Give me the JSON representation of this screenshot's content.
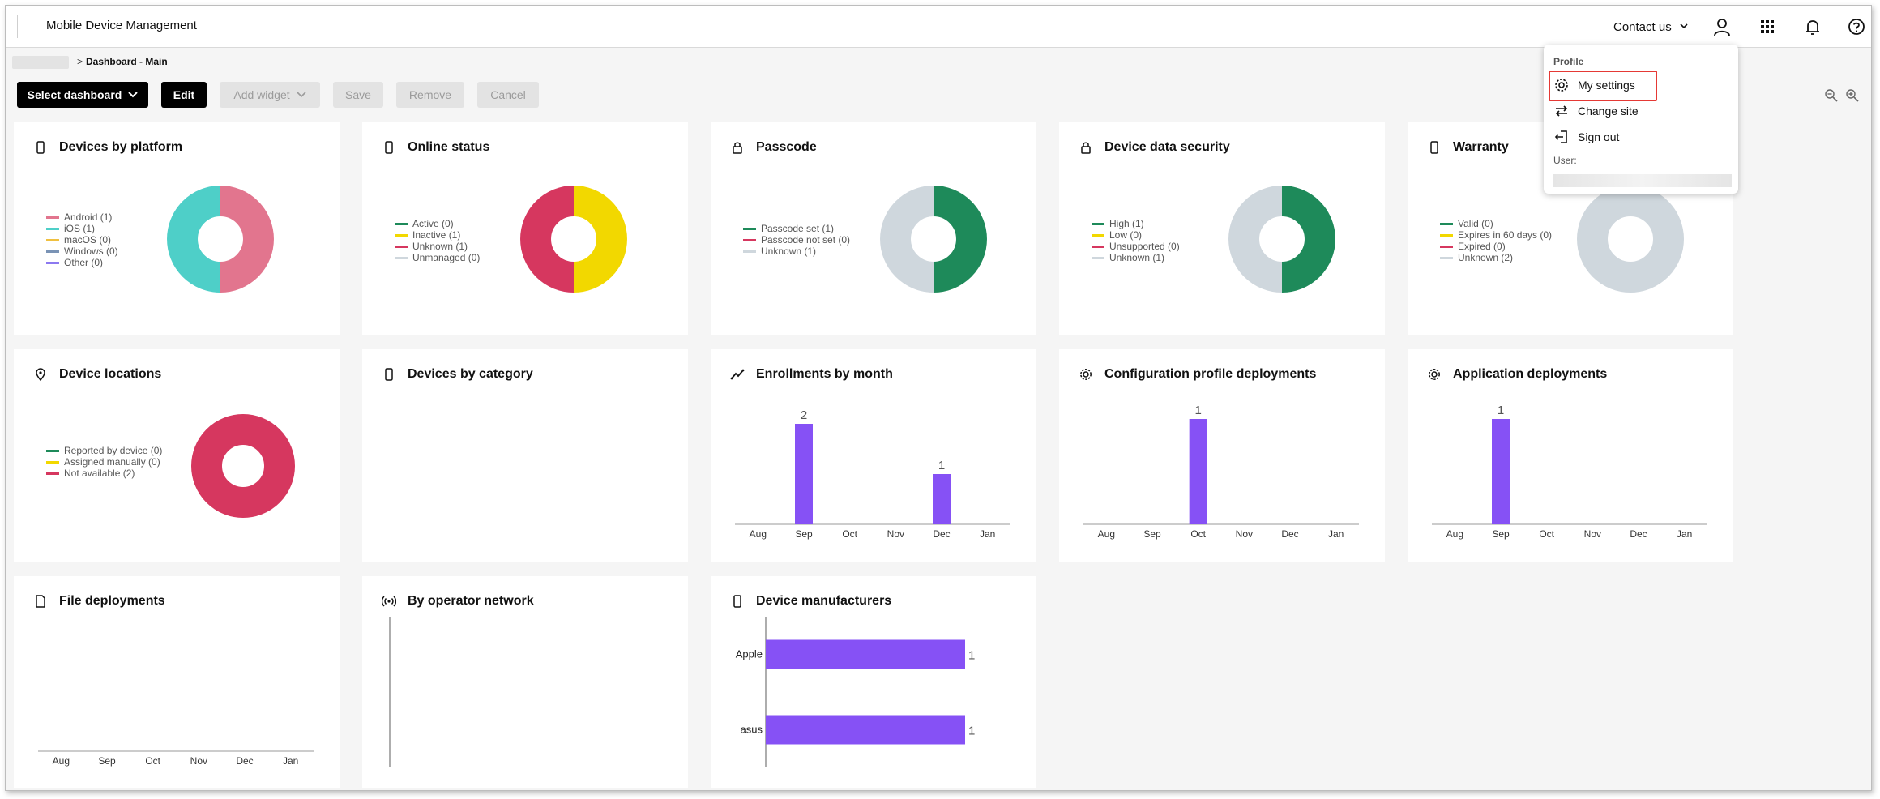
{
  "app": {
    "title": "Mobile Device Management"
  },
  "header": {
    "contact_label": "Contact us"
  },
  "breadcrumb": {
    "current": "Dashboard - Main",
    "separator": ">"
  },
  "toolbar": {
    "select_dashboard": "Select dashboard",
    "edit": "Edit",
    "add_widget": "Add widget",
    "save": "Save",
    "remove": "Remove",
    "cancel": "Cancel"
  },
  "profile_menu": {
    "title": "Profile",
    "my_settings": "My settings",
    "change_site": "Change site",
    "sign_out": "Sign out",
    "user_label": "User:"
  },
  "colors": {
    "accent": "#8651f5",
    "green": "#1e8a5a",
    "teal": "#4ecfc8",
    "pink": "#e2758e",
    "red": "#d6375f",
    "yellow": "#f2d800",
    "grey": "#cfd7dd",
    "blue_grey": "#7a93b5",
    "purple": "#8c79f0",
    "gold": "#f0c040"
  },
  "widgets": {
    "platform": {
      "title": "Devices by platform",
      "legend": [
        "Android (1)",
        "iOS (1)",
        "macOS (0)",
        "Windows (0)",
        "Other (0)"
      ]
    },
    "online": {
      "title": "Online status",
      "legend": [
        "Active (0)",
        "Inactive (1)",
        "Unknown (1)",
        "Unmanaged (0)"
      ]
    },
    "passcode": {
      "title": "Passcode",
      "legend": [
        "Passcode set (1)",
        "Passcode not set (0)",
        "Unknown (1)"
      ]
    },
    "security": {
      "title": "Device data security",
      "legend": [
        "High (1)",
        "Low (0)",
        "Unsupported (0)",
        "Unknown (1)"
      ]
    },
    "warranty": {
      "title": "Warranty",
      "legend": [
        "Valid (0)",
        "Expires in 60 days (0)",
        "Expired (0)",
        "Unknown (2)"
      ]
    },
    "locations": {
      "title": "Device locations",
      "legend": [
        "Reported by device (0)",
        "Assigned manually (0)",
        "Not available (2)"
      ]
    },
    "category": {
      "title": "Devices by category"
    },
    "enrollments": {
      "title": "Enrollments by month"
    },
    "config": {
      "title": "Configuration profile deployments"
    },
    "apps": {
      "title": "Application deployments"
    },
    "files": {
      "title": "File deployments"
    },
    "operator": {
      "title": "By operator network"
    },
    "manufacturers": {
      "title": "Device manufacturers"
    }
  },
  "chart_data": [
    {
      "type": "pie",
      "variant": "donut",
      "title": "Devices by platform",
      "categories": [
        "Android",
        "iOS",
        "macOS",
        "Windows",
        "Other"
      ],
      "values": [
        1,
        1,
        0,
        0,
        0
      ]
    },
    {
      "type": "pie",
      "variant": "donut",
      "title": "Online status",
      "categories": [
        "Active",
        "Inactive",
        "Unknown",
        "Unmanaged"
      ],
      "values": [
        0,
        1,
        1,
        0
      ]
    },
    {
      "type": "pie",
      "variant": "donut",
      "title": "Passcode",
      "categories": [
        "Passcode set",
        "Passcode not set",
        "Unknown"
      ],
      "values": [
        1,
        0,
        1
      ]
    },
    {
      "type": "pie",
      "variant": "donut",
      "title": "Device data security",
      "categories": [
        "High",
        "Low",
        "Unsupported",
        "Unknown"
      ],
      "values": [
        1,
        0,
        0,
        1
      ]
    },
    {
      "type": "pie",
      "variant": "donut",
      "title": "Warranty",
      "categories": [
        "Valid",
        "Expires in 60 days",
        "Expired",
        "Unknown"
      ],
      "values": [
        0,
        0,
        0,
        2
      ]
    },
    {
      "type": "pie",
      "variant": "donut",
      "title": "Device locations",
      "categories": [
        "Reported by device",
        "Assigned manually",
        "Not available"
      ],
      "values": [
        0,
        0,
        2
      ]
    },
    {
      "type": "bar",
      "title": "Enrollments by month",
      "categories": [
        "Aug",
        "Sep",
        "Oct",
        "Nov",
        "Dec",
        "Jan"
      ],
      "values": [
        0,
        2,
        0,
        0,
        1,
        0
      ],
      "ylim": [
        0,
        2
      ]
    },
    {
      "type": "bar",
      "title": "Configuration profile deployments",
      "categories": [
        "Aug",
        "Sep",
        "Oct",
        "Nov",
        "Dec",
        "Jan"
      ],
      "values": [
        0,
        0,
        1,
        0,
        0,
        0
      ],
      "ylim": [
        0,
        1
      ]
    },
    {
      "type": "bar",
      "title": "Application deployments",
      "categories": [
        "Aug",
        "Sep",
        "Oct",
        "Nov",
        "Dec",
        "Jan"
      ],
      "values": [
        0,
        1,
        0,
        0,
        0,
        0
      ],
      "ylim": [
        0,
        1
      ]
    },
    {
      "type": "bar",
      "title": "File deployments",
      "categories": [
        "Aug",
        "Sep",
        "Oct",
        "Nov",
        "Dec",
        "Jan"
      ],
      "values": [
        0,
        0,
        0,
        0,
        0,
        0
      ]
    },
    {
      "type": "bar",
      "orientation": "horizontal",
      "title": "Device manufacturers",
      "categories": [
        "Apple",
        "asus"
      ],
      "values": [
        1,
        1
      ],
      "xlim": [
        0,
        1
      ]
    }
  ]
}
